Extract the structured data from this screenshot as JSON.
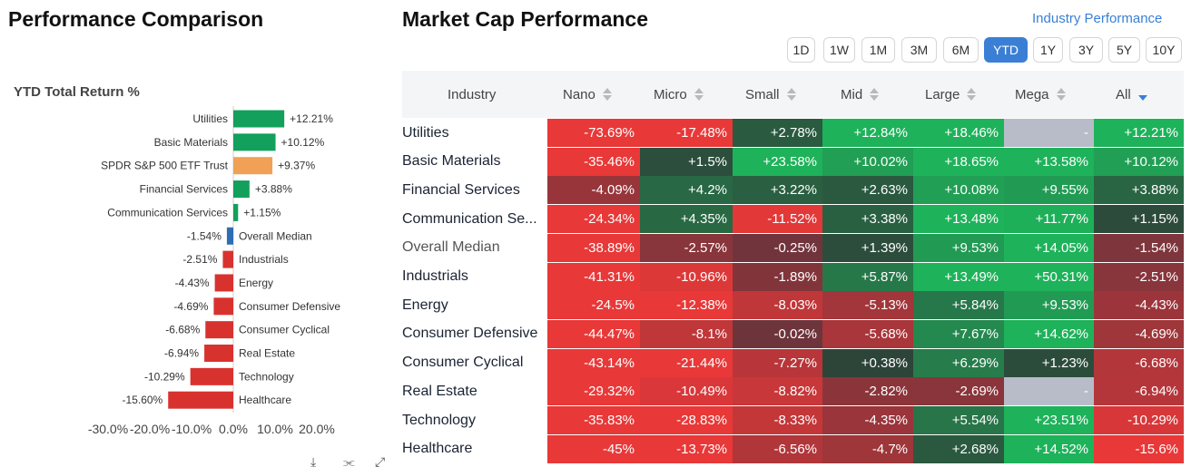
{
  "left_title": "Performance Comparison",
  "right_title": "Market Cap Performance",
  "industry_link": "Industry Performance",
  "period_tabs": [
    "1D",
    "1W",
    "1M",
    "3M",
    "6M",
    "YTD",
    "1Y",
    "3Y",
    "5Y",
    "10Y"
  ],
  "active_period": "YTD",
  "colors": {
    "positive_bar": "#12a05c",
    "negative_bar": "#d8322f",
    "highlight_bar": "#f0a155",
    "median_bar": "#2f6db5",
    "link": "#3a7fd5",
    "na_cell": "#b7bcc8"
  },
  "chart_data": {
    "type": "bar",
    "orientation": "horizontal",
    "title": "YTD Total Return %",
    "categories": [
      "Utilities",
      "Basic Materials",
      "SPDR S&P 500 ETF Trust",
      "Financial Services",
      "Communication Services",
      "Overall Median",
      "Industrials",
      "Energy",
      "Consumer Defensive",
      "Consumer Cyclical",
      "Real Estate",
      "Technology",
      "Healthcare"
    ],
    "values": [
      12.21,
      10.12,
      9.37,
      3.88,
      1.15,
      -1.54,
      -2.51,
      -4.43,
      -4.69,
      -6.68,
      -6.94,
      -10.29,
      -15.6
    ],
    "value_labels": [
      "+12.21%",
      "+10.12%",
      "+9.37%",
      "+3.88%",
      "+1.15%",
      "-1.54%",
      "-2.51%",
      "-4.43%",
      "-4.69%",
      "-6.68%",
      "-6.94%",
      "-10.29%",
      "-15.60%"
    ],
    "xlim": [
      -30,
      20
    ],
    "xticks": [
      -30,
      -20,
      -10,
      0,
      10,
      20
    ],
    "xtick_labels": [
      "-30.0%",
      "-20.0%",
      "-10.0%",
      "0.0%",
      "10.0%",
      "20.0%"
    ],
    "highlight": "SPDR S&P 500 ETF Trust",
    "median": "Overall Median",
    "grid": false
  },
  "table": {
    "columns": [
      "Industry",
      "Nano",
      "Micro",
      "Small",
      "Mid",
      "Large",
      "Mega",
      "All"
    ],
    "sorted_column": "All",
    "sort_direction": "descending",
    "rows": [
      {
        "industry": "Utilities",
        "values": [
          "-73.69%",
          "-17.48%",
          "+2.78%",
          "+12.84%",
          "+18.46%",
          "-",
          "+12.21%"
        ]
      },
      {
        "industry": "Basic Materials",
        "values": [
          "-35.46%",
          "+1.5%",
          "+23.58%",
          "+10.02%",
          "+18.65%",
          "+13.58%",
          "+10.12%"
        ]
      },
      {
        "industry": "Financial Services",
        "values": [
          "-4.09%",
          "+4.2%",
          "+3.22%",
          "+2.63%",
          "+10.08%",
          "+9.55%",
          "+3.88%"
        ]
      },
      {
        "industry": "Communication Se...",
        "values": [
          "-24.34%",
          "+4.35%",
          "-11.52%",
          "+3.38%",
          "+13.48%",
          "+11.77%",
          "+1.15%"
        ]
      },
      {
        "industry": "Overall Median",
        "values": [
          "-38.89%",
          "-2.57%",
          "-0.25%",
          "+1.39%",
          "+9.53%",
          "+14.05%",
          "-1.54%"
        ]
      },
      {
        "industry": "Industrials",
        "values": [
          "-41.31%",
          "-10.96%",
          "-1.89%",
          "+5.87%",
          "+13.49%",
          "+50.31%",
          "-2.51%"
        ]
      },
      {
        "industry": "Energy",
        "values": [
          "-24.5%",
          "-12.38%",
          "-8.03%",
          "-5.13%",
          "+5.84%",
          "+9.53%",
          "-4.43%"
        ]
      },
      {
        "industry": "Consumer Defensive",
        "values": [
          "-44.47%",
          "-8.1%",
          "-0.02%",
          "-5.68%",
          "+7.67%",
          "+14.62%",
          "-4.69%"
        ]
      },
      {
        "industry": "Consumer Cyclical",
        "values": [
          "-43.14%",
          "-21.44%",
          "-7.27%",
          "+0.38%",
          "+6.29%",
          "+1.23%",
          "-6.68%"
        ]
      },
      {
        "industry": "Real Estate",
        "values": [
          "-29.32%",
          "-10.49%",
          "-8.82%",
          "-2.82%",
          "-2.69%",
          "-",
          "-6.94%"
        ]
      },
      {
        "industry": "Technology",
        "values": [
          "-35.83%",
          "-28.83%",
          "-8.33%",
          "-4.35%",
          "+5.54%",
          "+23.51%",
          "-10.29%"
        ]
      },
      {
        "industry": "Healthcare",
        "values": [
          "-45%",
          "-13.73%",
          "-6.56%",
          "-4.7%",
          "+2.68%",
          "+14.52%",
          "-15.6%"
        ]
      }
    ]
  },
  "toolbar_icons": [
    "download-icon",
    "share-icon",
    "expand-icon"
  ]
}
